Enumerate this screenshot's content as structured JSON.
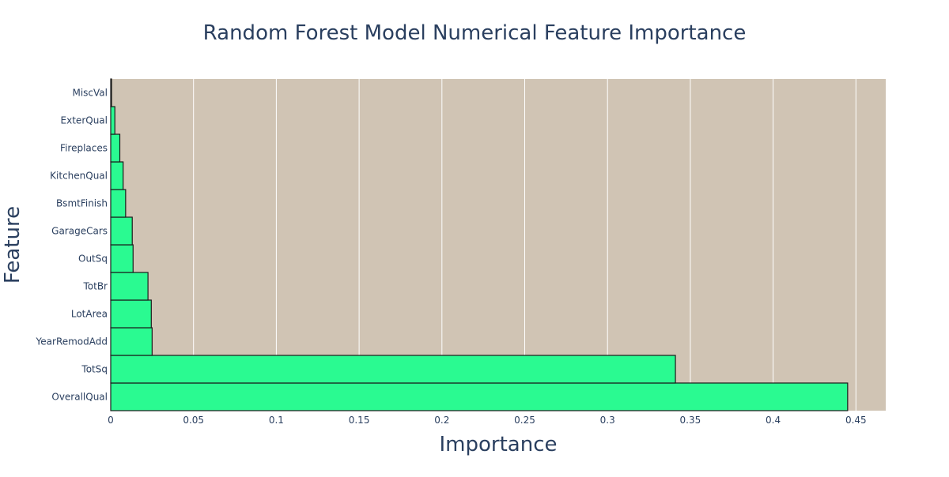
{
  "chart_data": {
    "type": "bar",
    "orientation": "horizontal",
    "title": "Random Forest Model Numerical Feature Importance",
    "xlabel": "Importance",
    "ylabel": "Feature",
    "xlim": [
      0,
      0.468
    ],
    "x_ticks": [
      0,
      0.05,
      0.1,
      0.15,
      0.2,
      0.25,
      0.3,
      0.35,
      0.4,
      0.45
    ],
    "x_tick_labels": [
      "0",
      "0.05",
      "0.1",
      "0.15",
      "0.2",
      "0.25",
      "0.3",
      "0.35",
      "0.4",
      "0.45"
    ],
    "categories": [
      "OverallQual",
      "TotSq",
      "YearRemodAdd",
      "LotArea",
      "TotBr",
      "OutSq",
      "GarageCars",
      "BsmtFinish",
      "KitchenQual",
      "Fireplaces",
      "ExterQual",
      "MiscVal"
    ],
    "values": [
      0.445,
      0.341,
      0.025,
      0.0245,
      0.0225,
      0.0135,
      0.013,
      0.009,
      0.0075,
      0.0055,
      0.0025,
      0.0005
    ],
    "grid": true,
    "colors": {
      "bar_fill": "#2afa91",
      "bar_stroke": "#1a1a1a",
      "plot_bg": "#d0c4b4",
      "grid": "#ffffff",
      "text": "#2a3f5f"
    }
  }
}
